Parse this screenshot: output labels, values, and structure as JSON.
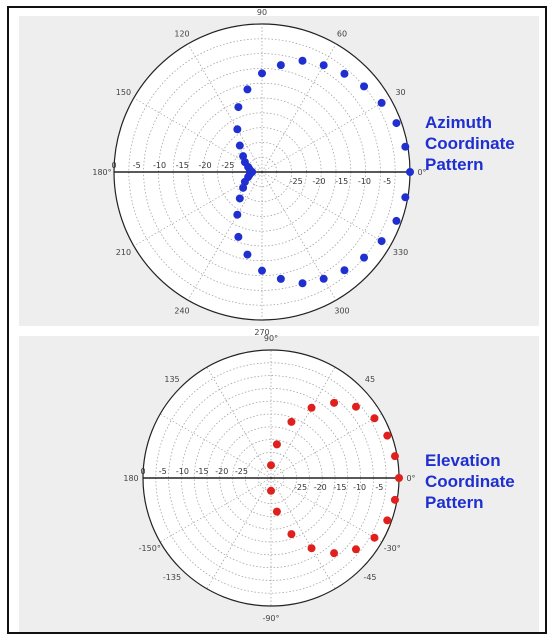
{
  "chart_data": [
    {
      "type": "scatter",
      "projection": "polar",
      "marker_color": "#1f2fd0",
      "caption_lines": [
        "Azimuth",
        "Coordinate",
        "Pattern"
      ],
      "angle_labels": [
        {
          "angle": 0,
          "label": "0°"
        },
        {
          "angle": 30,
          "label": "30"
        },
        {
          "angle": 60,
          "label": "60"
        },
        {
          "angle": 90,
          "label": "90"
        },
        {
          "angle": 120,
          "label": "120"
        },
        {
          "angle": 150,
          "label": "150"
        },
        {
          "angle": 180,
          "label": "180°"
        },
        {
          "angle": 210,
          "label": "210"
        },
        {
          "angle": 240,
          "label": "240"
        },
        {
          "angle": 270,
          "label": "270"
        },
        {
          "angle": 300,
          "label": "300"
        },
        {
          "angle": 330,
          "label": "330"
        }
      ],
      "radial_tick_labels": [
        "0",
        "-5",
        "-10",
        "-15",
        "-20",
        "-25"
      ],
      "radial_range": [
        -30,
        0
      ],
      "grid": true,
      "points": [
        {
          "angle": 0,
          "r": 0
        },
        {
          "angle": 10,
          "r": -0.5
        },
        {
          "angle": 20,
          "r": -1
        },
        {
          "angle": 30,
          "r": -2
        },
        {
          "angle": 40,
          "r": -3
        },
        {
          "angle": 50,
          "r": -4
        },
        {
          "angle": 60,
          "r": -5
        },
        {
          "angle": 70,
          "r": -6
        },
        {
          "angle": 80,
          "r": -8
        },
        {
          "angle": 90,
          "r": -10
        },
        {
          "angle": 100,
          "r": -13
        },
        {
          "angle": 110,
          "r": -16
        },
        {
          "angle": 120,
          "r": -20
        },
        {
          "angle": 130,
          "r": -23
        },
        {
          "angle": 140,
          "r": -25
        },
        {
          "angle": 150,
          "r": -26
        },
        {
          "angle": 160,
          "r": -27
        },
        {
          "angle": 170,
          "r": -27.5
        },
        {
          "angle": 180,
          "r": -28
        },
        {
          "angle": 190,
          "r": -27.5
        },
        {
          "angle": 200,
          "r": -27
        },
        {
          "angle": 210,
          "r": -26
        },
        {
          "angle": 220,
          "r": -25
        },
        {
          "angle": 230,
          "r": -23
        },
        {
          "angle": 240,
          "r": -20
        },
        {
          "angle": 250,
          "r": -16
        },
        {
          "angle": 260,
          "r": -13
        },
        {
          "angle": 270,
          "r": -10
        },
        {
          "angle": 280,
          "r": -8
        },
        {
          "angle": 290,
          "r": -6
        },
        {
          "angle": 300,
          "r": -5
        },
        {
          "angle": 310,
          "r": -4
        },
        {
          "angle": 320,
          "r": -3
        },
        {
          "angle": 330,
          "r": -2
        },
        {
          "angle": 340,
          "r": -1
        },
        {
          "angle": 350,
          "r": -0.5
        }
      ]
    },
    {
      "type": "scatter",
      "projection": "polar",
      "marker_color": "#e0201c",
      "caption_lines": [
        "Elevation",
        "Coordinate",
        "Pattern"
      ],
      "angle_labels": [
        {
          "angle": 0,
          "label": "0°"
        },
        {
          "angle": 45,
          "label": "45"
        },
        {
          "angle": 90,
          "label": "90°"
        },
        {
          "angle": 135,
          "label": "135"
        },
        {
          "angle": 180,
          "label": "180"
        },
        {
          "angle": -45,
          "label": "-45"
        },
        {
          "angle": -90,
          "label": "-90°"
        },
        {
          "angle": -135,
          "label": "-135"
        },
        {
          "angle": -150,
          "label": "-150°"
        },
        {
          "angle": -30,
          "label": "-30°"
        }
      ],
      "radial_tick_labels": [
        "0",
        "-5",
        "-10",
        "-15",
        "-20",
        "-25"
      ],
      "radial_range": [
        -30,
        0
      ],
      "grid": true,
      "points": [
        {
          "angle": 0,
          "r": 0
        },
        {
          "angle": 10,
          "r": -0.5
        },
        {
          "angle": 20,
          "r": -1
        },
        {
          "angle": 30,
          "r": -2
        },
        {
          "angle": 40,
          "r": -4
        },
        {
          "angle": 50,
          "r": -7
        },
        {
          "angle": 60,
          "r": -11
        },
        {
          "angle": 70,
          "r": -16
        },
        {
          "angle": 80,
          "r": -22
        },
        {
          "angle": 90,
          "r": -27
        },
        {
          "angle": -10,
          "r": -0.5
        },
        {
          "angle": -20,
          "r": -1
        },
        {
          "angle": -30,
          "r": -2
        },
        {
          "angle": -40,
          "r": -4
        },
        {
          "angle": -50,
          "r": -7
        },
        {
          "angle": -60,
          "r": -11
        },
        {
          "angle": -70,
          "r": -16
        },
        {
          "angle": -80,
          "r": -22
        },
        {
          "angle": -90,
          "r": -27
        }
      ]
    }
  ]
}
